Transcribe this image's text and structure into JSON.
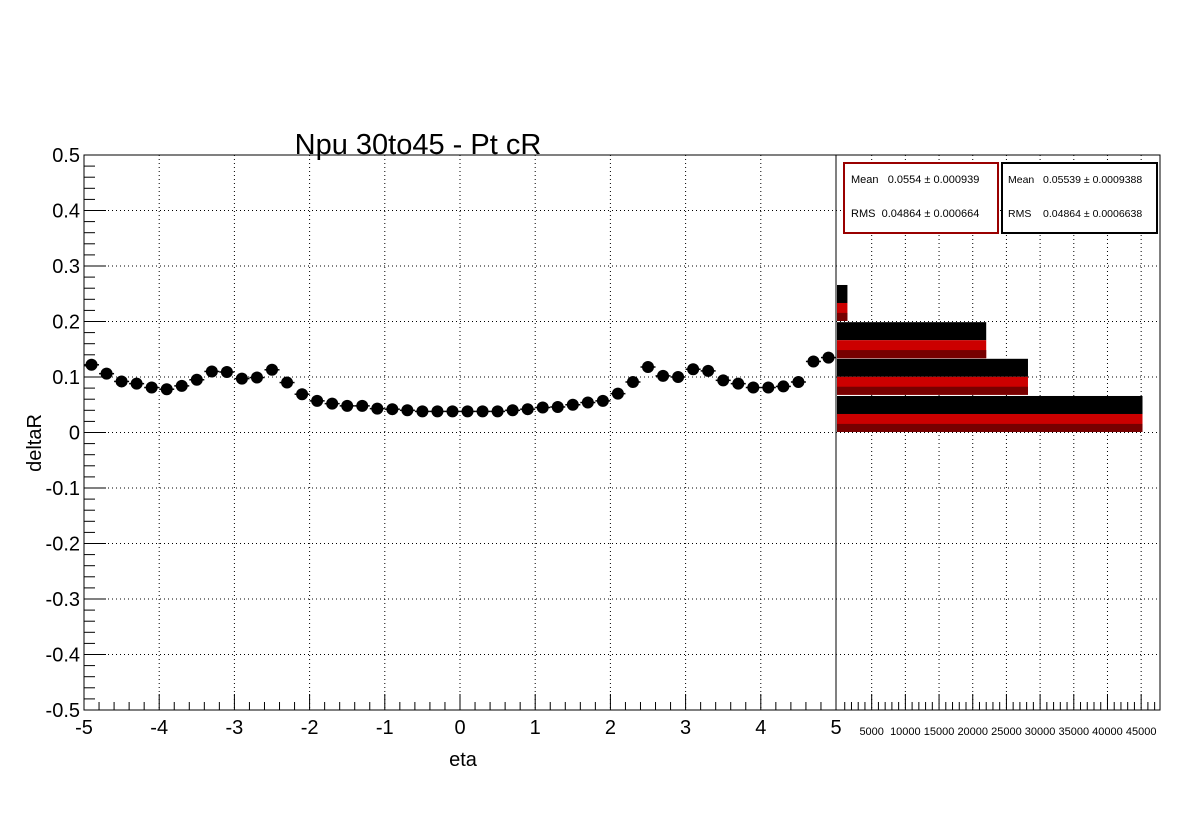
{
  "chart_data": [
    {
      "type": "scatter",
      "title": "Npu 30to45 - Pt cR",
      "xlabel": "eta",
      "ylabel": "deltaR",
      "xlim": [
        -5,
        5
      ],
      "ylim": [
        -0.5,
        0.5
      ],
      "x_ticks": [
        "-5",
        "-4",
        "-3",
        "-2",
        "-1",
        "0",
        "1",
        "2",
        "3",
        "4",
        "5"
      ],
      "y_ticks": [
        "0.5",
        "0.4",
        "0.3",
        "0.2",
        "0.1",
        "0",
        "-0.1",
        "-0.2",
        "-0.3",
        "-0.4",
        "-0.5"
      ],
      "grid": true,
      "marker_color": "#000000",
      "series": [
        {
          "x": [
            -4.9,
            -4.7,
            -4.5,
            -4.3,
            -4.1,
            -3.9,
            -3.7,
            -3.5,
            -3.3,
            -3.1,
            -2.9,
            -2.7,
            -2.5,
            -2.3,
            -2.1,
            -1.9,
            -1.7,
            -1.5,
            -1.3,
            -1.1,
            -0.9,
            -0.7,
            -0.5,
            -0.3,
            -0.1,
            0.1,
            0.3,
            0.5,
            0.7,
            0.9,
            1.1,
            1.3,
            1.5,
            1.7,
            1.9,
            2.1,
            2.3,
            2.5,
            2.7,
            2.9,
            3.1,
            3.3,
            3.5,
            3.7,
            3.9,
            4.1,
            4.3,
            4.5,
            4.7,
            4.9
          ],
          "values": [
            0.122,
            0.106,
            0.092,
            0.088,
            0.081,
            0.078,
            0.084,
            0.095,
            0.11,
            0.109,
            0.097,
            0.099,
            0.113,
            0.09,
            0.069,
            0.057,
            0.052,
            0.048,
            0.048,
            0.043,
            0.042,
            0.04,
            0.038,
            0.038,
            0.038,
            0.038,
            0.038,
            0.038,
            0.04,
            0.042,
            0.045,
            0.046,
            0.05,
            0.054,
            0.057,
            0.07,
            0.091,
            0.118,
            0.102,
            0.1,
            0.114,
            0.111,
            0.094,
            0.088,
            0.081,
            0.081,
            0.083,
            0.091,
            0.128,
            0.135
          ]
        }
      ]
    },
    {
      "type": "bar",
      "orientation": "horizontal",
      "y_bins": [
        0.2,
        0.133,
        0.067,
        0.0
      ],
      "x_ticks": [
        "5000",
        "10000",
        "15000",
        "20000",
        "25000",
        "30000",
        "35000",
        "40000",
        "45000"
      ],
      "xlim": [
        0,
        47500
      ],
      "series": [
        {
          "color": "#000000",
          "values": [
            1400,
            22000,
            28200,
            45200
          ]
        },
        {
          "color": "#cc0000",
          "values": [
            1400,
            22000,
            28200,
            45200
          ]
        }
      ],
      "stats": [
        {
          "border": "#990000",
          "mean_label": "Mean",
          "mean_value": "0.0554 ± 0.000939",
          "rms_label": "RMS",
          "rms_value": "0.04864 ± 0.000664"
        },
        {
          "border": "#000000",
          "mean_label": "Mean",
          "mean_value": "0.05539 ± 0.0009388",
          "rms_label": "RMS",
          "rms_value": "0.04864 ± 0.0006638"
        }
      ]
    }
  ]
}
